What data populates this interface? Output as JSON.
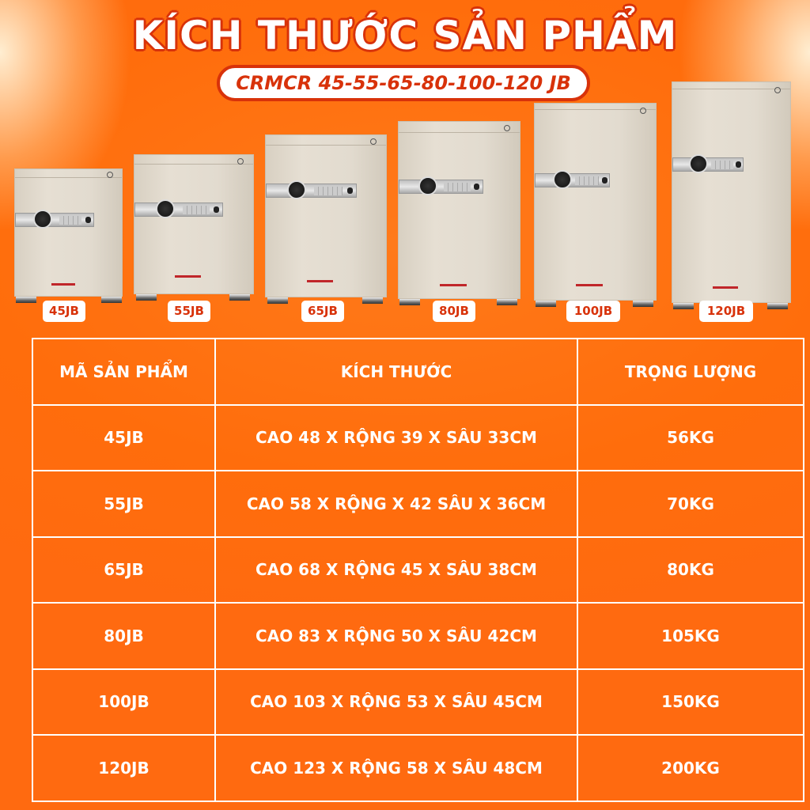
{
  "header": {
    "title": "KÍCH THƯỚC SẢN PHẨM",
    "subtitle": "CRMCR 45-55-65-80-100-120 JB"
  },
  "products": [
    {
      "label": "45JB"
    },
    {
      "label": "55JB"
    },
    {
      "label": "65JB"
    },
    {
      "label": "80JB"
    },
    {
      "label": "100JB"
    },
    {
      "label": "120JB"
    }
  ],
  "table": {
    "headers": [
      "MÃ SẢN PHẨM",
      "KÍCH THƯỚC",
      "TRỌNG LƯỢNG"
    ],
    "rows": [
      [
        "45JB",
        "CAO 48 X RỘNG 39 X SÂU 33CM",
        "56KG"
      ],
      [
        "55JB",
        "CAO 58 X RỘNG X 42 SÂU X 36CM",
        "70KG"
      ],
      [
        "65JB",
        "CAO 68 X RỘNG 45 X SÂU 38CM",
        "80KG"
      ],
      [
        "80JB",
        "CAO 83 X RỘNG 50 X SÂU 42CM",
        "105KG"
      ],
      [
        "100JB",
        "CAO 103 X RỘNG 53 X SÂU 45CM",
        "150KG"
      ],
      [
        "120JB",
        "CAO 123  X RỘNG 58 X SÂU 48CM",
        "200KG"
      ]
    ]
  },
  "colors": {
    "background": "#ff6d0c",
    "accent": "#d8320a",
    "text": "#ffffff",
    "safe": "#e2dbcf"
  }
}
